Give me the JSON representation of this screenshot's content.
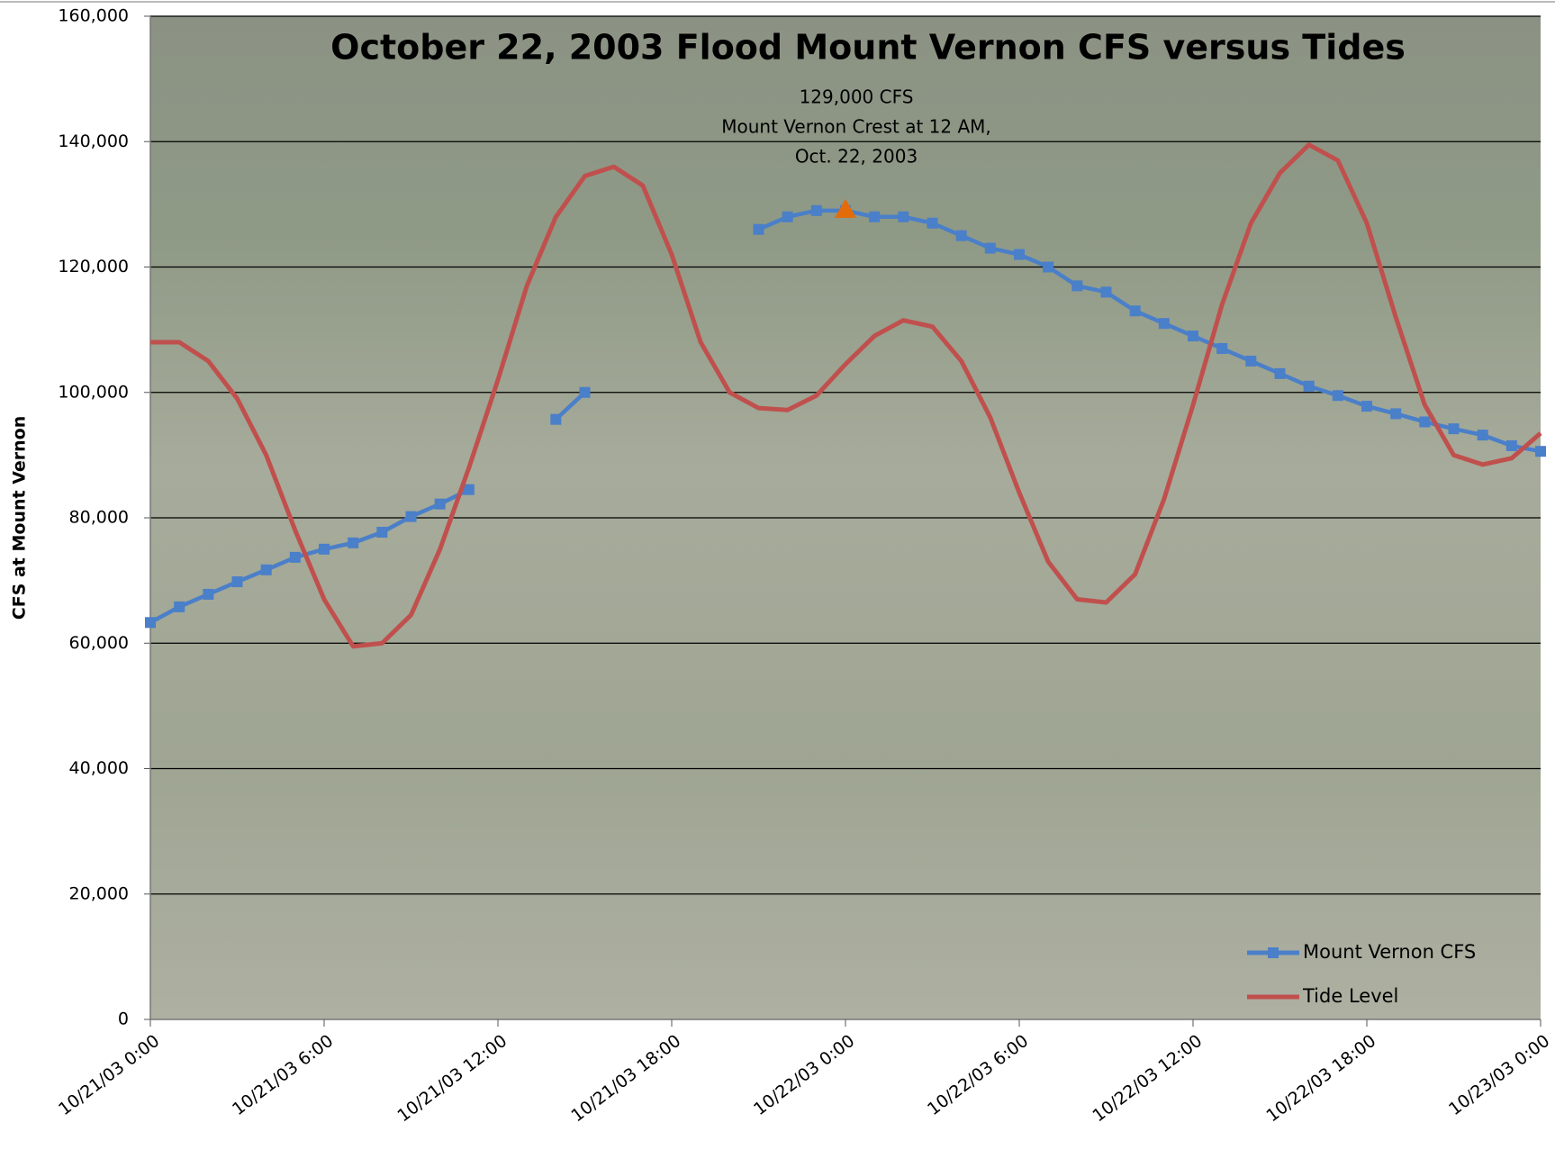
{
  "chart_data": {
    "type": "line",
    "title": "October 22, 2003 Flood Mount Vernon CFS versus Tides",
    "y_label": "CFS at Mount Vernon",
    "x": [
      "10/21/03 0:00",
      "10/21/03 1:00",
      "10/21/03 2:00",
      "10/21/03 3:00",
      "10/21/03 4:00",
      "10/21/03 5:00",
      "10/21/03 6:00",
      "10/21/03 7:00",
      "10/21/03 8:00",
      "10/21/03 9:00",
      "10/21/03 10:00",
      "10/21/03 11:00",
      "10/21/03 12:00",
      "10/21/03 13:00",
      "10/21/03 14:00",
      "10/21/03 15:00",
      "10/21/03 16:00",
      "10/21/03 17:00",
      "10/21/03 18:00",
      "10/21/03 19:00",
      "10/21/03 20:00",
      "10/21/03 21:00",
      "10/21/03 22:00",
      "10/21/03 23:00",
      "10/22/03 0:00",
      "10/22/03 1:00",
      "10/22/03 2:00",
      "10/22/03 3:00",
      "10/22/03 4:00",
      "10/22/03 5:00",
      "10/22/03 6:00",
      "10/22/03 7:00",
      "10/22/03 8:00",
      "10/22/03 9:00",
      "10/22/03 10:00",
      "10/22/03 11:00",
      "10/22/03 12:00",
      "10/22/03 13:00",
      "10/22/03 14:00",
      "10/22/03 15:00",
      "10/22/03 16:00",
      "10/22/03 17:00",
      "10/22/03 18:00",
      "10/22/03 19:00",
      "10/22/03 20:00",
      "10/22/03 21:00",
      "10/22/03 22:00",
      "10/22/03 23:00",
      "10/23/03 0:00"
    ],
    "series": [
      {
        "name": "Mount Vernon CFS",
        "color": "#4a7fc9",
        "marker": "square",
        "values": [
          63300,
          65800,
          67800,
          69800,
          71700,
          73700,
          75000,
          76000,
          77700,
          80200,
          82200,
          84500,
          null,
          null,
          95700,
          100000,
          null,
          null,
          null,
          null,
          null,
          126000,
          128000,
          129000,
          129000,
          128000,
          128000,
          127000,
          125000,
          123000,
          122000,
          120000,
          117000,
          116000,
          113000,
          111000,
          109000,
          107000,
          105000,
          103000,
          101000,
          99500,
          97800,
          96600,
          95300,
          94200,
          93200,
          91500,
          90600
        ]
      },
      {
        "name": "Tide Level",
        "color": "#c0504d",
        "marker": "none",
        "values": [
          108000,
          108000,
          105000,
          99000,
          90000,
          78000,
          67000,
          59500,
          60000,
          64500,
          75000,
          88000,
          102000,
          117000,
          128000,
          134500,
          136000,
          133000,
          122000,
          108000,
          100000,
          97500,
          97200,
          99500,
          104500,
          109000,
          111500,
          110500,
          105000,
          96000,
          84000,
          73000,
          67000,
          66500,
          71000,
          83000,
          98000,
          114000,
          127000,
          135000,
          139500,
          137000,
          127000,
          112000,
          98000,
          90000,
          88500,
          89500,
          93500
        ]
      }
    ],
    "annotation": {
      "lines": [
        "129,000 CFS",
        "Mount Vernon Crest at 12 AM,",
        "Oct. 22, 2003"
      ],
      "x": "10/22/03 0:00",
      "y": 129000,
      "color": "#e36c09"
    },
    "xlim": [
      "10/21/03 0:00",
      "10/23/03 0:00"
    ],
    "xticks": [
      "10/21/03 0:00",
      "10/21/03 6:00",
      "10/21/03 12:00",
      "10/21/03 18:00",
      "10/22/03 0:00",
      "10/22/03 6:00",
      "10/22/03 12:00",
      "10/22/03 18:00",
      "10/23/03 0:00"
    ],
    "ylim": [
      0,
      160000
    ],
    "yticks": [
      0,
      {
        "value": 20000,
        "label": "20,000"
      },
      {
        "value": 40000,
        "label": "40,000"
      },
      {
        "value": 60000,
        "label": "60,000"
      },
      {
        "value": 80000,
        "label": "80,000"
      },
      {
        "value": 100000,
        "label": "100,000"
      },
      {
        "value": 120000,
        "label": "120,000"
      },
      {
        "value": 140000,
        "label": "140,000"
      },
      {
        "value": 160000,
        "label": "160,000"
      }
    ],
    "grid": true,
    "legend": "lower right"
  }
}
